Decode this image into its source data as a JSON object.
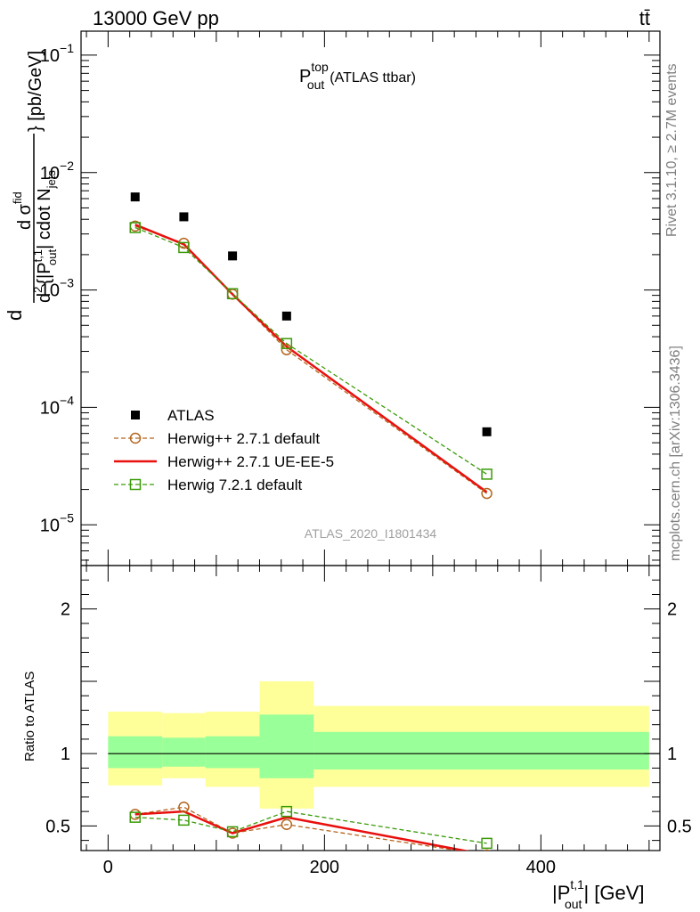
{
  "header": {
    "left": "13000 GeV pp",
    "right": "tt̄"
  },
  "side_labels": {
    "rivet": "Rivet 3.1.10, ≥ 2.7M events",
    "mcplots": "mcplots.cern.ch [arXiv:1306.3436]"
  },
  "chart_data": [
    {
      "type": "scatter",
      "title_main": "P",
      "title_sup": "top",
      "title_sub": "out",
      "title_rest": "(ATLAS ttbar)",
      "watermark": "ATLAS_2020_I1801434",
      "ylabel": {
        "d1": "d",
        "sigma": "d σ",
        "sigma_sup": "fid",
        "d2": "d",
        "exp2": "2",
        "pbar_open": "{|P",
        "pbar_sup": "t,1",
        "pbar_sub": "out",
        "pbar_rest": "| cdot N",
        "njets_sub": "jets",
        "close": "} [pb/GeV]"
      },
      "yscale": "log",
      "ylim": [
        4.5e-06,
        0.16
      ],
      "xlim": [
        -25,
        510
      ],
      "ytick_labels": [
        {
          "base": "10",
          "exp": "−1",
          "v": 0.1
        },
        {
          "base": "10",
          "exp": "−2",
          "v": 0.01
        },
        {
          "base": "10",
          "exp": "−3",
          "v": 0.001
        },
        {
          "base": "10",
          "exp": "−4",
          "v": 0.0001
        },
        {
          "base": "10",
          "exp": "−5",
          "v": 1e-05
        }
      ],
      "legend_position": "lower-left",
      "series": [
        {
          "name": "ATLAS",
          "style": "data",
          "color": "#000000",
          "x": [
            25,
            70,
            115,
            165,
            350
          ],
          "y": [
            0.0062,
            0.0042,
            0.00195,
            0.0006,
            6.2e-05
          ]
        },
        {
          "name": "Herwig++ 2.7.1 default",
          "style": "circle-dashed",
          "color": "#b5651d",
          "x": [
            25,
            70,
            115,
            165,
            350
          ],
          "y": [
            0.0035,
            0.0025,
            0.00092,
            0.00031,
            1.85e-05
          ]
        },
        {
          "name": "Herwig++ 2.7.1 UE-EE-5",
          "style": "solid",
          "color": "#e8100e",
          "x": [
            25,
            70,
            115,
            165,
            350
          ],
          "y": [
            0.0036,
            0.00245,
            0.00092,
            0.00033,
            1.9e-05
          ]
        },
        {
          "name": "Herwig 7.2.1 default",
          "style": "square-dashed",
          "color": "#3a9a08",
          "x": [
            25,
            70,
            115,
            165,
            350
          ],
          "y": [
            0.0034,
            0.0023,
            0.00093,
            0.00035,
            2.7e-05
          ]
        }
      ]
    },
    {
      "type": "scatter",
      "ylabel": "Ratio to ATLAS",
      "xlabel_main": "|P",
      "xlabel_sup": "t,1",
      "xlabel_sub": "out",
      "xlabel_rest": "| [GeV]",
      "xlim": [
        -25,
        510
      ],
      "ylim": [
        0.33,
        2.3
      ],
      "xtick_labels": [
        {
          "label": "0",
          "v": 0
        },
        {
          "label": "200",
          "v": 200
        },
        {
          "label": "400",
          "v": 400
        }
      ],
      "ytick_labels": [
        {
          "label": "0.5",
          "v": 0.5
        },
        {
          "label": "1",
          "v": 1
        },
        {
          "label": "2",
          "v": 2
        }
      ],
      "bands": [
        {
          "x": [
            0,
            50
          ],
          "yellow": [
            0.78,
            1.29
          ],
          "green": [
            0.9,
            1.12
          ]
        },
        {
          "x": [
            50,
            90
          ],
          "yellow": [
            0.83,
            1.28
          ],
          "green": [
            0.91,
            1.11
          ]
        },
        {
          "x": [
            90,
            140
          ],
          "yellow": [
            0.77,
            1.29
          ],
          "green": [
            0.9,
            1.12
          ]
        },
        {
          "x": [
            140,
            190
          ],
          "yellow": [
            0.62,
            1.5
          ],
          "green": [
            0.83,
            1.27
          ]
        },
        {
          "x": [
            190,
            500
          ],
          "yellow": [
            0.77,
            1.33
          ],
          "green": [
            0.89,
            1.15
          ]
        }
      ],
      "series": [
        {
          "name": "Herwig++ 2.7.1 default",
          "style": "circle-dashed",
          "color": "#b5651d",
          "x": [
            25,
            70,
            115,
            165,
            350
          ],
          "y": [
            0.58,
            0.63,
            0.45,
            0.51,
            0.3
          ]
        },
        {
          "name": "Herwig++ 2.7.1 UE-EE-5",
          "style": "solid",
          "color": "#e8100e",
          "x": [
            25,
            70,
            115,
            165,
            350
          ],
          "y": [
            0.58,
            0.6,
            0.45,
            0.56,
            0.3
          ]
        },
        {
          "name": "Herwig 7.2.1 default",
          "style": "square-dashed",
          "color": "#3a9a08",
          "x": [
            25,
            70,
            115,
            165,
            350
          ],
          "y": [
            0.56,
            0.54,
            0.46,
            0.6,
            0.38
          ]
        }
      ]
    }
  ]
}
